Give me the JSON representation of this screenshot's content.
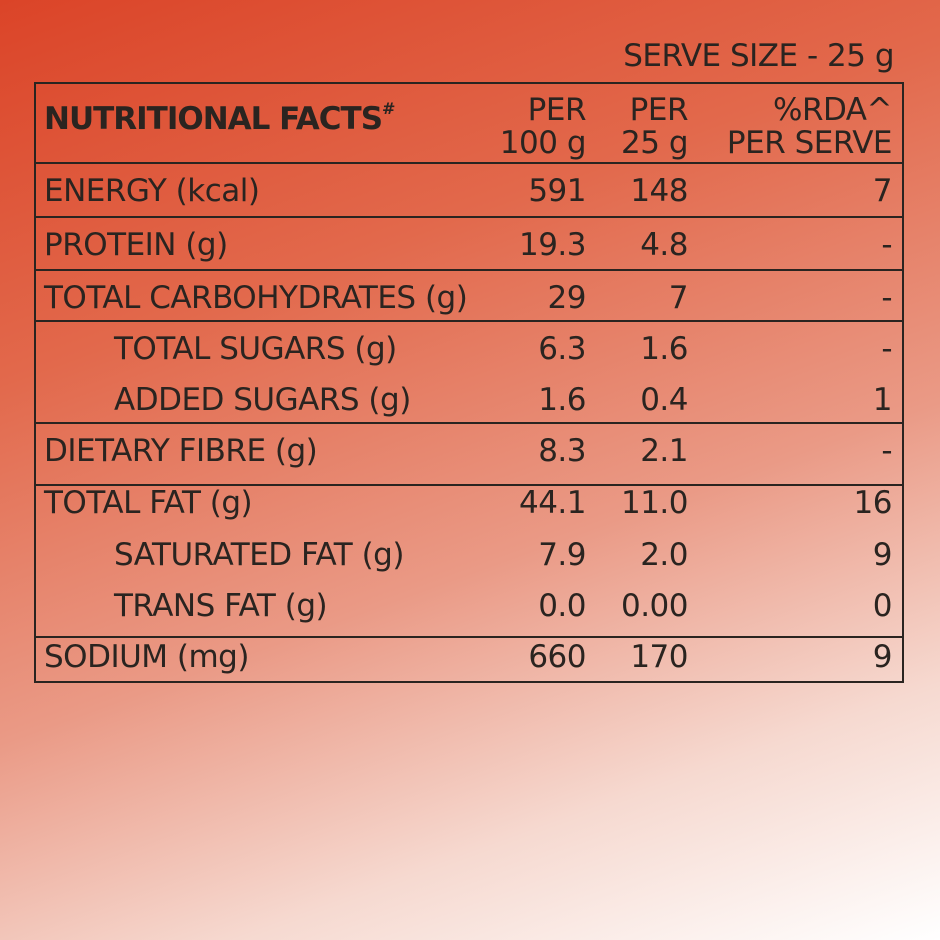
{
  "serve_size": "SERVE SIZE - 25 g",
  "header": {
    "title": "NUTRITIONAL FACTS",
    "title_mark": "#",
    "col1": [
      "PER",
      "100 g"
    ],
    "col2": [
      "PER",
      "25 g"
    ],
    "col3": [
      "%RDA^",
      "PER SERVE"
    ]
  },
  "rows": [
    {
      "label": "ENERGY (kcal)",
      "per100": "591",
      "per25": "148",
      "rda": "7"
    },
    {
      "label": "PROTEIN (g)",
      "per100": "19.3",
      "per25": "4.8",
      "rda": "-"
    },
    {
      "label": "TOTAL CARBOHYDRATES (g)",
      "per100": "29",
      "per25": "7",
      "rda": "-"
    },
    {
      "label": "TOTAL SUGARS (g)",
      "per100": "6.3",
      "per25": "1.6",
      "rda": "-"
    },
    {
      "label": "ADDED SUGARS (g)",
      "per100": "1.6",
      "per25": "0.4",
      "rda": "1"
    },
    {
      "label": "DIETARY FIBRE (g)",
      "per100": "8.3",
      "per25": "2.1",
      "rda": "-"
    },
    {
      "label": "TOTAL FAT (g)",
      "per100": "44.1",
      "per25": "11.0",
      "rda": "16"
    },
    {
      "label": "SATURATED FAT (g)",
      "per100": "7.9",
      "per25": "2.0",
      "rda": "9"
    },
    {
      "label": "TRANS FAT (g)",
      "per100": "0.0",
      "per25": "0.00",
      "rda": "0"
    },
    {
      "label": "SODIUM (mg)",
      "per100": "660",
      "per25": "170",
      "rda": "9"
    }
  ]
}
